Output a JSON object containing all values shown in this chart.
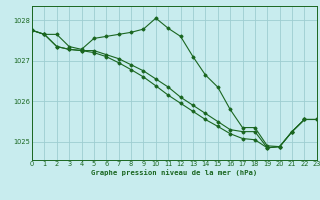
{
  "title": "Graphe pression niveau de la mer (hPa)",
  "bg_color": "#c8ecee",
  "grid_color": "#9ecdd1",
  "line_color": "#1a6620",
  "marker_color": "#1a6620",
  "xlim": [
    0,
    23
  ],
  "ylim": [
    1024.55,
    1028.35
  ],
  "yticks": [
    1025,
    1026,
    1027,
    1028
  ],
  "xticks": [
    0,
    1,
    2,
    3,
    4,
    5,
    6,
    7,
    8,
    9,
    10,
    11,
    12,
    13,
    14,
    15,
    16,
    17,
    18,
    19,
    20,
    21,
    22,
    23
  ],
  "series": [
    [
      1027.75,
      1027.65,
      1027.65,
      1027.35,
      1027.28,
      1027.55,
      1027.6,
      1027.65,
      1027.7,
      1027.78,
      1028.05,
      1027.8,
      1027.6,
      1027.1,
      1026.65,
      1026.35,
      1025.8,
      1025.35,
      1025.35,
      1024.9,
      1024.88,
      1025.25,
      1025.55,
      1025.55
    ],
    [
      1027.75,
      1027.65,
      1027.35,
      1027.28,
      1027.25,
      1027.25,
      1027.15,
      1027.05,
      1026.9,
      1026.75,
      1026.55,
      1026.35,
      1026.1,
      1025.9,
      1025.7,
      1025.5,
      1025.3,
      1025.25,
      1025.25,
      1024.85,
      1024.88,
      1025.25,
      1025.55,
      1025.55
    ],
    [
      1027.75,
      1027.65,
      1027.35,
      1027.28,
      1027.25,
      1027.2,
      1027.1,
      1026.95,
      1026.78,
      1026.6,
      1026.38,
      1026.15,
      1025.95,
      1025.75,
      1025.55,
      1025.38,
      1025.2,
      1025.08,
      1025.05,
      1024.85,
      1024.88,
      1025.25,
      1025.55,
      1025.55
    ]
  ]
}
